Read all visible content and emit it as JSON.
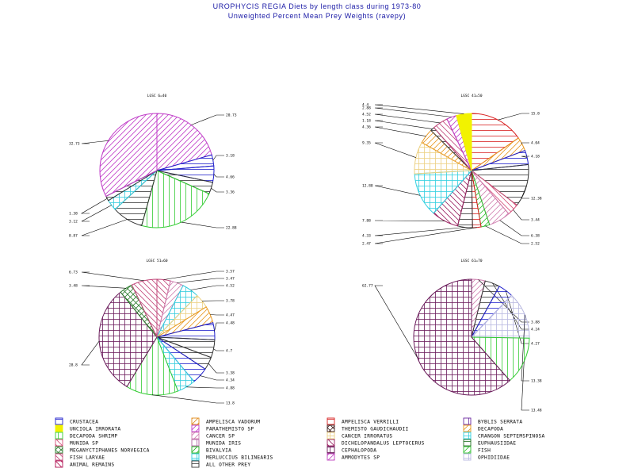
{
  "header": {
    "title": "UROPHYCIS REGIA Diets by length class during 1973-80",
    "subtitle": "Unweighted Percent Mean Prey Weights (ravepy)"
  },
  "colors": {
    "title": "#1a1aa6",
    "CRUSTACEA": "#1f1fcc",
    "UNCIOLA IRRORATA": "#f2f200",
    "DECAPODA SHRIMP": "#33cc33",
    "MUNIDA SP": "#d4507a",
    "MEGANYCTIPHANES NORVEGICA": "#2e7d2e",
    "FISH LARVAE": "#c2487a",
    "ANIMAL REMAINS": "#b01050",
    "AMPELISCA VADORUM": "#e08a1a",
    "PARATHEMISTO SP": "#c03cc8",
    "CANCER SP": "#d080b0",
    "MUNIDA IRIS": "#b060a0",
    "BIVALVIA": "#20b020",
    "MERLUCCIUS BILINEARIS": "#33ccdd",
    "ALL OTHER PREY": "#333333",
    "AMPELISCA VERRILLI": "#d82020",
    "THEMISTO GAUDICHAUDII": "#402020",
    "CANCER IRRORATUS": "#ecd080",
    "DICHELOPANDALUS LEPTOCERUS": "#9a2060",
    "CEPHALOPODA": "#6a1a5a",
    "AMMODYTES SP": "#c040c0",
    "BYBLIS SERRATA": "#6a28a0",
    "DECAPODA": "#e89820",
    "CRANGON SEPTEMSPINOSA": "#30d0e0",
    "EUPHAUSIIDAE": "#207020",
    "FISH": "#30c030",
    "OPHIDIIDAE": "#b8b8e0"
  },
  "legend": [
    [
      "CRUSTACEA",
      "UNCIOLA IRRORATA",
      "DECAPODA SHRIMP",
      "MUNIDA SP",
      "MEGANYCTIPHANES NORVEGICA",
      "FISH LARVAE",
      "ANIMAL REMAINS"
    ],
    [
      "AMPELISCA VADORUM",
      "PARATHEMISTO SP",
      "CANCER SP",
      "MUNIDA IRIS",
      "BIVALVIA",
      "MERLUCCIUS BILINEARIS",
      "ALL OTHER PREY"
    ],
    [
      "AMPELISCA VERRILLI",
      "THEMISTO GAUDICHAUDII",
      "CANCER IRRORATUS",
      "DICHELOPANDALUS LEPTOCERUS",
      "CEPHALOPODA",
      "AMMODYTES SP"
    ],
    [
      "BYBLIS SERRATA",
      "DECAPODA",
      "CRANGON SEPTEMSPINOSA",
      "EUPHAUSIIDAE",
      "FISH",
      "OPHIDIIDAE"
    ]
  ],
  "chart_data": [
    {
      "type": "pie",
      "title": "LGSC 6=40",
      "slices": [
        {
          "category": "PARATHEMISTO SP",
          "value": 20.73
        },
        {
          "category": "CRUSTACEA",
          "value": 3.18
        },
        {
          "category": "CRUSTACEA",
          "value": 4.66
        },
        {
          "category": "ALL OTHER PREY",
          "value": 3.36
        },
        {
          "category": "DECAPODA SHRIMP",
          "value": 22.88
        },
        {
          "category": "ALL OTHER PREY",
          "value": 8.87
        },
        {
          "category": "MERLUCCIUS BILINEARIS",
          "value": 3.12
        },
        {
          "category": "ALL OTHER PREY",
          "value": 1.38
        },
        {
          "category": "PARATHEMISTO SP",
          "value": 32.73
        }
      ]
    },
    {
      "type": "pie",
      "title": "LGSC 41=50",
      "slices": [
        {
          "category": "AMPELISCA VERRILLI",
          "value": 15.8
        },
        {
          "category": "DECAPODA",
          "value": 4.04
        },
        {
          "category": "CRUSTACEA",
          "value": 4.18
        },
        {
          "category": "ALL OTHER PREY",
          "value": 12.38
        },
        {
          "category": "MUNIDA SP",
          "value": 3.44
        },
        {
          "category": "CANCER SP",
          "value": 6.38
        },
        {
          "category": "FISH",
          "value": 2.52
        },
        {
          "category": "AMPELISCA VERRILLI",
          "value": 2.47
        },
        {
          "category": "ALL OTHER PREY",
          "value": 4.33
        },
        {
          "category": "DICHELOPANDALUS LEPTOCERUS",
          "value": 7.88
        },
        {
          "category": "CRANGON SEPTEMSPINOSA",
          "value": 12.88
        },
        {
          "category": "CANCER IRRORATUS",
          "value": 9.35
        },
        {
          "category": "DECAPODA",
          "value": 4.36
        },
        {
          "category": "ALL OTHER PREY",
          "value": 1.18
        },
        {
          "category": "FISH LARVAE",
          "value": 4.52
        },
        {
          "category": "PARATHEMISTO SP",
          "value": 2.88
        },
        {
          "category": "UNCIOLA IRRORATA",
          "value": 4.4
        }
      ]
    },
    {
      "type": "pie",
      "title": "LGSC 51=60",
      "slices": [
        {
          "category": "FISH LARVAE",
          "value": 3.57
        },
        {
          "category": "CANCER SP",
          "value": 3.47
        },
        {
          "category": "MERLUCCIUS BILINEARIS",
          "value": 4.52
        },
        {
          "category": "CANCER IRRORATUS",
          "value": 3.78
        },
        {
          "category": "DECAPODA",
          "value": 4.47
        },
        {
          "category": "CRUSTACEA",
          "value": 4.48
        },
        {
          "category": "ALL OTHER PREY",
          "value": 4.7
        },
        {
          "category": "ALL OTHER PREY",
          "value": 3.38
        },
        {
          "category": "CRUSTACEA",
          "value": 4.34
        },
        {
          "category": "MERLUCCIUS BILINEARIS",
          "value": 4.88
        },
        {
          "category": "DECAPODA SHRIMP",
          "value": 13.8
        },
        {
          "category": "CEPHALOPODA",
          "value": 28.8
        },
        {
          "category": "MEGANYCTIPHANES NORVEGICA",
          "value": 3.48
        },
        {
          "category": "FISH LARVAE",
          "value": 6.73
        }
      ]
    },
    {
      "type": "pie",
      "title": "LGSC 61=70",
      "slices": [
        {
          "category": "CANCER SP",
          "value": 3.88
        },
        {
          "category": "ALL OTHER PREY",
          "value": 4.24
        },
        {
          "category": "CRUSTACEA",
          "value": 4.27
        },
        {
          "category": "OPHIDIIDAE",
          "value": 13.38
        },
        {
          "category": "DECAPODA SHRIMP",
          "value": 13.48
        },
        {
          "category": "CEPHALOPODA",
          "value": 62.77
        }
      ]
    }
  ],
  "pie_titles": [
    "LGSC 6=40",
    "LGSC 41=50",
    "LGSC 51=60",
    "LGSC 61=70"
  ],
  "slice_labels": [
    [
      "20.73",
      "3.18",
      "4.66",
      "3.36",
      "22.88",
      "8.87",
      "3.12",
      "1.38",
      "32.73"
    ],
    [
      "15.8",
      "4.04",
      "4.18",
      "12.38",
      "3.44",
      "6.38",
      "2.52",
      "2.47",
      "4.33",
      "7.88",
      "12.88",
      "9.35",
      "4.36",
      "1.18",
      "4.52",
      "2.88",
      "4.4"
    ],
    [
      "3.57",
      "3.47",
      "4.52",
      "3.78",
      "4.47",
      "4.48",
      "4.7",
      "3.38",
      "4.34",
      "4.88",
      "13.8",
      "28.8",
      "3.48",
      "6.73"
    ],
    [
      "3.88",
      "4.24",
      "4.27",
      "13.38",
      "13.48",
      "62.77"
    ]
  ]
}
